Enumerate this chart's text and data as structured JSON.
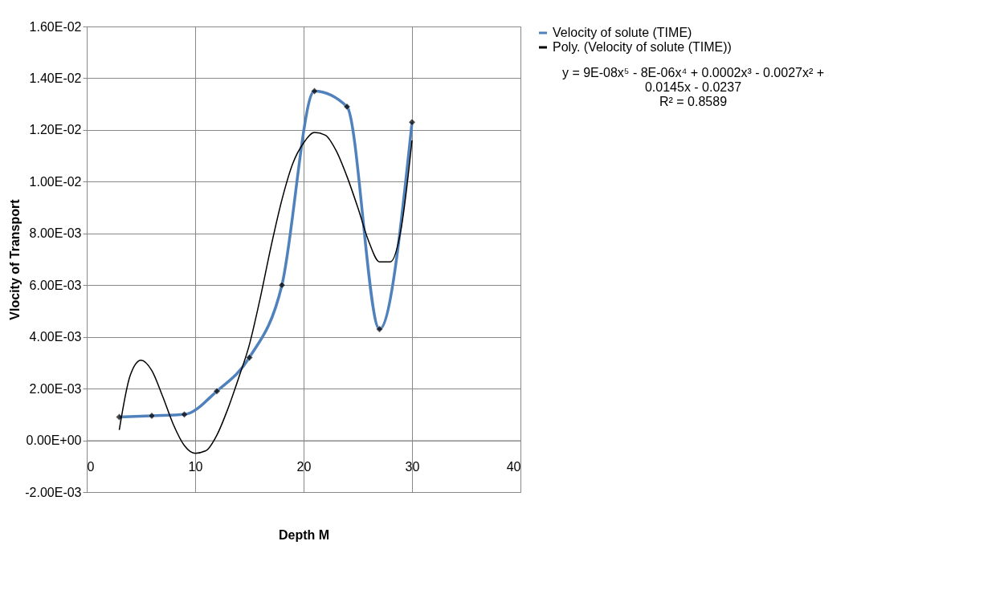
{
  "chart_data": {
    "type": "line",
    "xlabel": "Depth M",
    "ylabel": "Vlocity of Transport",
    "xlim": [
      0,
      40
    ],
    "xticks": [
      0,
      10,
      20,
      30,
      40
    ],
    "ylim": [
      -0.002,
      0.016
    ],
    "yticks": [
      {
        "value": -0.002,
        "label": "-2.00E-03"
      },
      {
        "value": 0,
        "label": "0.00E+00"
      },
      {
        "value": 0.002,
        "label": "2.00E-03"
      },
      {
        "value": 0.004,
        "label": "4.00E-03"
      },
      {
        "value": 0.006,
        "label": "6.00E-03"
      },
      {
        "value": 0.008,
        "label": "8.00E-03"
      },
      {
        "value": 0.01,
        "label": "1.00E-02"
      },
      {
        "value": 0.012,
        "label": "1.20E-02"
      },
      {
        "value": 0.014,
        "label": "1.40E-02"
      },
      {
        "value": 0.016,
        "label": "1.60E-02"
      }
    ],
    "grid": true,
    "legend": "right",
    "series": [
      {
        "name": "Velocity of solute (TIME)",
        "color": "#4f81bd",
        "marker": "diamond",
        "x": [
          3,
          6,
          9,
          12,
          15,
          18,
          21,
          24,
          27,
          30
        ],
        "values": [
          0.0009,
          0.00095,
          0.001,
          0.0019,
          0.0032,
          0.006,
          0.0135,
          0.0129,
          0.0043,
          0.0123
        ]
      },
      {
        "name": "Poly. (Velocity of solute (TIME))",
        "color": "#000000",
        "marker": "none",
        "x": [
          3,
          4,
          5,
          6,
          7,
          8,
          9,
          10,
          11,
          12,
          13,
          14,
          15,
          16,
          17,
          18,
          19,
          20,
          21,
          22,
          23,
          24,
          25,
          26,
          27,
          28,
          29,
          30
        ],
        "values": [
          0.0004,
          0.0025,
          0.0031,
          0.0027,
          0.0017,
          0.0006,
          -0.0002,
          -0.0005,
          -0.0004,
          0.0002,
          0.0012,
          0.0024,
          0.0037,
          0.0055,
          0.0075,
          0.0093,
          0.0107,
          0.0115,
          0.0119,
          0.0118,
          0.0112,
          0.0102,
          0.009,
          0.0077,
          0.0069,
          0.0069,
          0.0082,
          0.0116
        ]
      }
    ],
    "annotations": [
      "y = 9E-08x⁵ - 8E-06x⁴ + 0.0002x³ - 0.0027x² +\n0.0145x - 0.0237\nR² = 0.8589"
    ]
  }
}
